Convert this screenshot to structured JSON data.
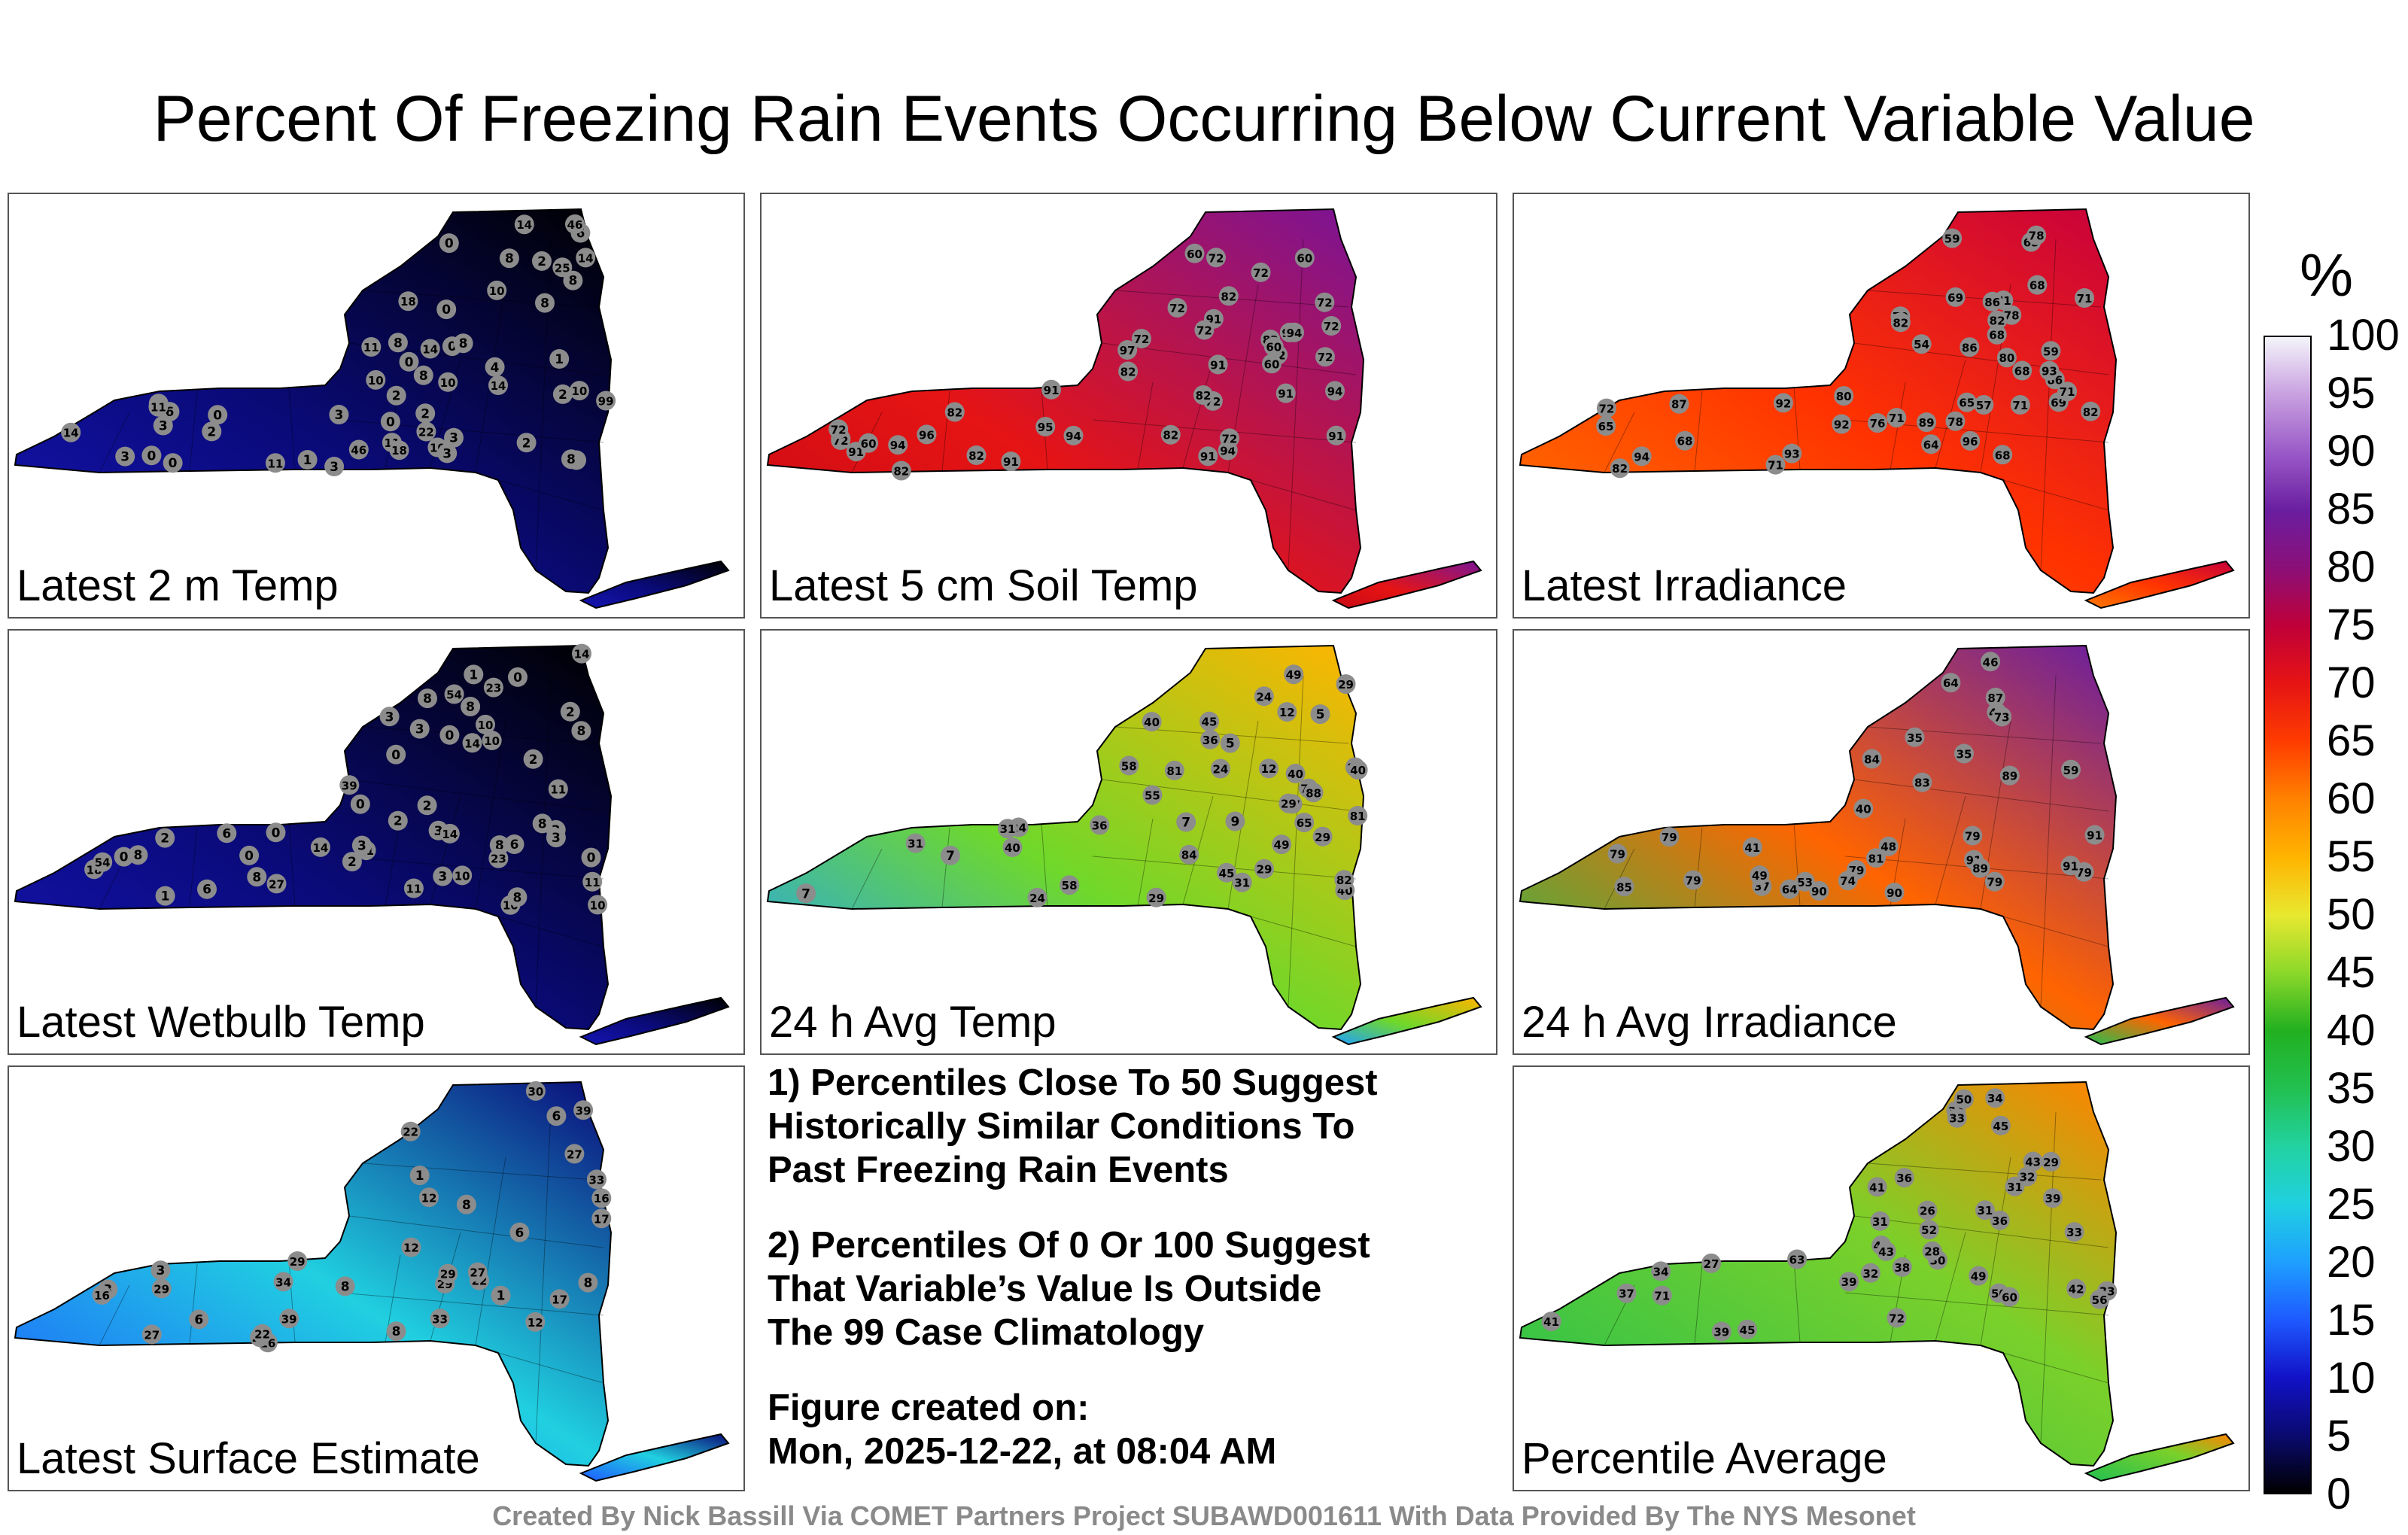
{
  "chart_data": {
    "type": "heatmap",
    "title": "Percent Of Freezing Rain Events Occurring Below Current Variable Value",
    "colorbar": {
      "unit": "%",
      "ticks": [
        "100",
        "95",
        "90",
        "85",
        "80",
        "75",
        "70",
        "65",
        "60",
        "55",
        "50",
        "45",
        "40",
        "35",
        "30",
        "25",
        "20",
        "15",
        "10",
        "5",
        "0"
      ],
      "range": [
        0,
        100
      ],
      "colors": [
        "#000000",
        "#0a0a70",
        "#1212c8",
        "#1e5aff",
        "#1ea0ff",
        "#20d0e0",
        "#22d2a0",
        "#22c050",
        "#22b020",
        "#8cd82a",
        "#e8e830",
        "#ffb400",
        "#ff8200",
        "#ff3c00",
        "#e61414",
        "#c00038",
        "#8c0f78",
        "#6a1ea0",
        "#9a5ac8",
        "#c8a0e0",
        "#f4f4fa"
      ]
    },
    "panels": [
      {
        "label": "Latest 2 m Temp",
        "values": [
          0,
          0,
          1,
          0,
          2,
          3,
          2,
          0,
          0,
          0,
          3,
          1,
          2,
          0,
          0,
          10,
          4,
          8,
          8,
          14,
          11,
          11,
          3,
          10,
          6,
          14,
          10,
          8,
          6,
          2,
          8,
          6,
          2,
          8,
          8,
          11,
          2,
          8,
          3,
          3,
          3,
          8,
          14,
          10,
          10,
          11,
          22,
          18,
          14,
          18,
          46,
          46,
          25,
          99,
          14
        ]
      },
      {
        "label": "Latest 5 cm Soil Temp",
        "values": [
          82,
          91,
          91,
          72,
          72,
          82,
          72,
          91,
          97,
          72,
          91,
          72,
          82,
          91,
          82,
          60,
          94,
          82,
          72,
          82,
          91,
          72,
          60,
          91,
          82,
          72,
          94,
          91,
          72,
          82,
          91,
          72,
          60,
          60,
          72,
          94,
          60,
          82,
          72,
          96,
          95,
          94,
          94,
          94
        ]
      },
      {
        "label": "Latest Irradiance",
        "values": [
          59,
          80,
          82,
          86,
          65,
          71,
          64,
          68,
          86,
          82,
          69,
          57,
          68,
          89,
          65,
          68,
          68,
          71,
          78,
          54,
          65,
          78,
          72,
          82,
          71,
          59,
          70,
          78,
          80,
          71,
          86,
          82,
          87,
          71,
          93,
          76,
          68,
          69,
          92,
          71,
          93,
          96,
          94,
          92
        ]
      },
      {
        "label": "Latest Wetbulb Temp",
        "values": [
          0,
          0,
          1,
          0,
          2,
          3,
          2,
          0,
          0,
          0,
          3,
          1,
          2,
          0,
          0,
          10,
          3,
          8,
          8,
          14,
          11,
          11,
          3,
          10,
          6,
          14,
          10,
          8,
          6,
          2,
          8,
          6,
          2,
          8,
          8,
          11,
          2,
          8,
          3,
          3,
          3,
          8,
          14,
          10,
          10,
          11,
          23,
          18,
          23,
          54,
          54,
          27,
          39,
          14
        ]
      },
      {
        "label": "24 h Avg Temp",
        "values": [
          17,
          9,
          7,
          29,
          24,
          36,
          29,
          5,
          5,
          40,
          40,
          24,
          29,
          12,
          31,
          45,
          40,
          49,
          55,
          31,
          45,
          40,
          29,
          31,
          7,
          12,
          24,
          29,
          7,
          24,
          36,
          29,
          40,
          49,
          58,
          75,
          65,
          58,
          81,
          82,
          84,
          88,
          81
        ]
      },
      {
        "label": "24 h Avg Irradiance",
        "values": [
          37,
          40,
          35,
          49,
          48,
          64,
          73,
          79,
          53,
          81,
          79,
          35,
          59,
          48,
          83,
          79,
          85,
          79,
          41,
          46,
          64,
          79,
          84,
          79,
          74,
          89,
          79,
          91,
          90,
          87,
          90,
          91,
          89,
          91
        ]
      },
      {
        "label": "Latest Surface Estimate",
        "values": [
          3,
          1,
          1,
          6,
          6,
          12,
          16,
          3,
          8,
          12,
          22,
          17,
          27,
          29,
          29,
          17,
          16,
          16,
          22,
          6,
          8,
          8,
          29,
          22,
          29,
          27,
          33,
          30,
          34,
          12,
          22,
          27,
          33,
          39,
          39,
          8
        ]
      },
      {
        "label": "Percentile Average",
        "values": [
          29,
          30,
          31,
          34,
          31,
          33,
          41,
          37,
          32,
          36,
          27,
          26,
          33,
          38,
          45,
          42,
          49,
          39,
          41,
          43,
          34,
          39,
          52,
          45,
          40,
          36,
          33,
          28,
          31,
          32,
          34,
          39,
          43,
          50,
          60,
          63,
          50,
          56,
          71,
          72
        ]
      }
    ]
  },
  "notes": {
    "note1": [
      "1) Percentiles Close To 50 Suggest",
      "Historically Similar Conditions To",
      "Past Freezing Rain Events"
    ],
    "note2": [
      "2) Percentiles Of 0 Or 100 Suggest",
      "That Variable’s Value Is Outside",
      "The 99 Case Climatology"
    ],
    "created_label": "Figure created on:",
    "created_date": "Mon, 2025-12-22, at 08:04 AM"
  },
  "footer": "Created By Nick Bassill Via COMET Partners Project SUBAWD001611 With Data Provided By The NYS Mesonet"
}
